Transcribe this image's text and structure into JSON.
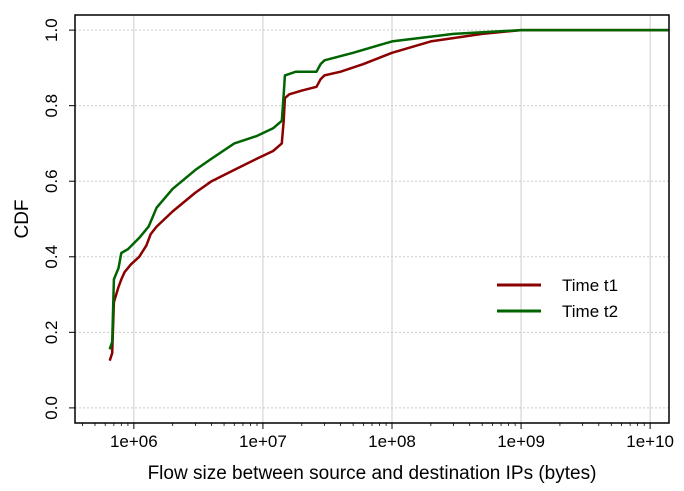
{
  "chart_data": {
    "type": "line",
    "xlabel": "Flow size between source and destination IPs (bytes)",
    "ylabel": "CDF",
    "x_scale": "log",
    "xlim": [
      350000,
      14000000000
    ],
    "ylim": [
      -0.04,
      1.04
    ],
    "x_ticks": [
      1000000,
      10000000,
      100000000,
      1000000000,
      10000000000
    ],
    "x_tick_labels": [
      "1e+06",
      "1e+07",
      "1e+08",
      "1e+09",
      "1e+10"
    ],
    "y_ticks": [
      0.0,
      0.2,
      0.4,
      0.6,
      0.8,
      1.0
    ],
    "y_tick_labels": [
      "0.0",
      "0.2",
      "0.4",
      "0.6",
      "0.8",
      "1.0"
    ],
    "grid": true,
    "legend_position": "center-right",
    "series": [
      {
        "name": "Time t1",
        "color": "#8b0000",
        "points": [
          [
            650000,
            0.125
          ],
          [
            680000,
            0.145
          ],
          [
            700000,
            0.28
          ],
          [
            760000,
            0.32
          ],
          [
            800000,
            0.34
          ],
          [
            850000,
            0.36
          ],
          [
            950000,
            0.38
          ],
          [
            1100000,
            0.4
          ],
          [
            1250000,
            0.43
          ],
          [
            1350000,
            0.46
          ],
          [
            1500000,
            0.48
          ],
          [
            2000000,
            0.52
          ],
          [
            3000000,
            0.57
          ],
          [
            4000000,
            0.6
          ],
          [
            6000000,
            0.63
          ],
          [
            9000000,
            0.66
          ],
          [
            12000000,
            0.68
          ],
          [
            14000000,
            0.7
          ],
          [
            14500000,
            0.76
          ],
          [
            14800000,
            0.82
          ],
          [
            16000000,
            0.83
          ],
          [
            20000000,
            0.84
          ],
          [
            26000000,
            0.85
          ],
          [
            28000000,
            0.87
          ],
          [
            30000000,
            0.88
          ],
          [
            40000000,
            0.89
          ],
          [
            60000000,
            0.91
          ],
          [
            100000000,
            0.94
          ],
          [
            200000000,
            0.97
          ],
          [
            500000000,
            0.99
          ],
          [
            1000000000,
            1.0
          ],
          [
            14000000000,
            1.0
          ]
        ]
      },
      {
        "name": "Time t2",
        "color": "#006400",
        "points": [
          [
            650000,
            0.155
          ],
          [
            680000,
            0.175
          ],
          [
            700000,
            0.34
          ],
          [
            760000,
            0.37
          ],
          [
            800000,
            0.41
          ],
          [
            900000,
            0.42
          ],
          [
            1100000,
            0.45
          ],
          [
            1300000,
            0.48
          ],
          [
            1500000,
            0.53
          ],
          [
            2000000,
            0.58
          ],
          [
            3000000,
            0.63
          ],
          [
            4000000,
            0.66
          ],
          [
            6000000,
            0.7
          ],
          [
            9000000,
            0.72
          ],
          [
            12000000,
            0.74
          ],
          [
            14000000,
            0.76
          ],
          [
            14500000,
            0.83
          ],
          [
            14800000,
            0.88
          ],
          [
            18000000,
            0.89
          ],
          [
            26000000,
            0.89
          ],
          [
            28000000,
            0.91
          ],
          [
            30000000,
            0.92
          ],
          [
            50000000,
            0.94
          ],
          [
            100000000,
            0.97
          ],
          [
            300000000,
            0.99
          ],
          [
            1000000000,
            1.0
          ],
          [
            14000000000,
            1.0
          ]
        ]
      }
    ]
  }
}
